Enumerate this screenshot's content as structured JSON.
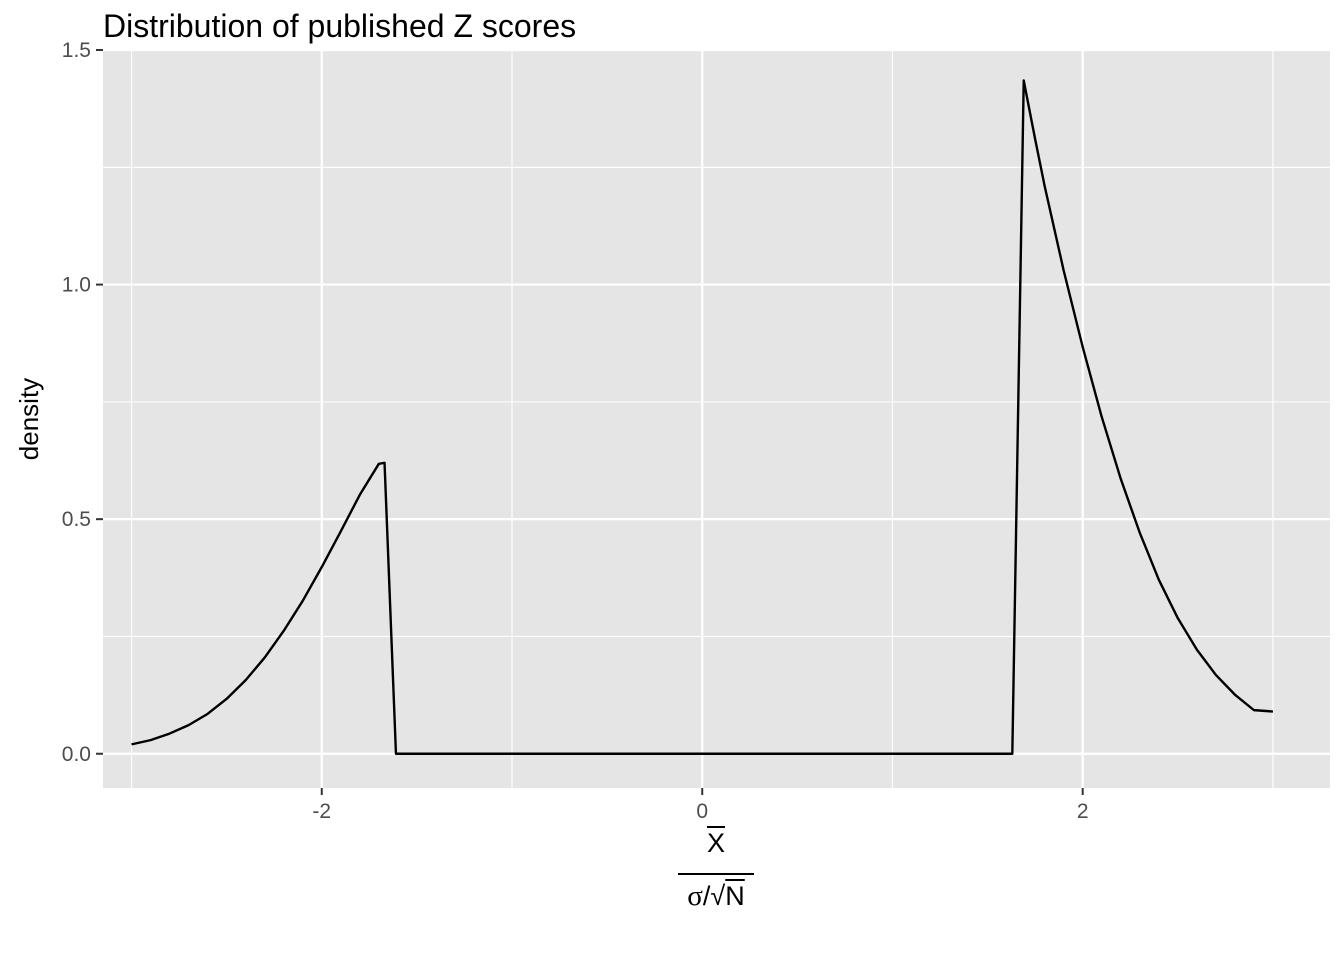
{
  "chart_data": {
    "type": "line",
    "title": "Distribution of published Z scores",
    "xlabel": {
      "numerator": "X",
      "denominator_sigma": "σ",
      "denominator_slash": "/",
      "denominator_root": "√",
      "denominator_n": "N"
    },
    "ylabel": "density",
    "xlim": [
      -3.15,
      3.3
    ],
    "ylim": [
      -0.073,
      1.5
    ],
    "x_ticks": [
      -2,
      0,
      2
    ],
    "x_tick_labels": [
      "-2",
      "0",
      "2"
    ],
    "y_ticks": [
      0.0,
      0.5,
      1.0,
      1.5
    ],
    "y_tick_labels": [
      "0.0",
      "0.5",
      "1.0",
      "1.5"
    ],
    "grid": true,
    "background": "#E5E5E5",
    "gridline_color": "#FFFFFF",
    "line_color": "#000000",
    "series": [
      {
        "x": [
          -3.0,
          -2.9,
          -2.8,
          -2.7,
          -2.6,
          -2.5,
          -2.4,
          -2.3,
          -2.2,
          -2.1,
          -2.0,
          -1.9,
          -1.8,
          -1.7,
          -1.67,
          -1.61,
          1.63,
          1.69,
          1.75,
          1.8,
          1.9,
          2.0,
          2.1,
          2.2,
          2.3,
          2.4,
          2.5,
          2.6,
          2.7,
          2.8,
          2.9,
          3.0
        ],
        "y": [
          0.02,
          0.029,
          0.043,
          0.061,
          0.085,
          0.117,
          0.157,
          0.205,
          0.262,
          0.326,
          0.398,
          0.474,
          0.552,
          0.618,
          0.62,
          0.0,
          0.0,
          1.435,
          1.31,
          1.21,
          1.03,
          0.867,
          0.718,
          0.586,
          0.471,
          0.371,
          0.289,
          0.222,
          0.168,
          0.126,
          0.093,
          0.09
        ]
      }
    ]
  }
}
